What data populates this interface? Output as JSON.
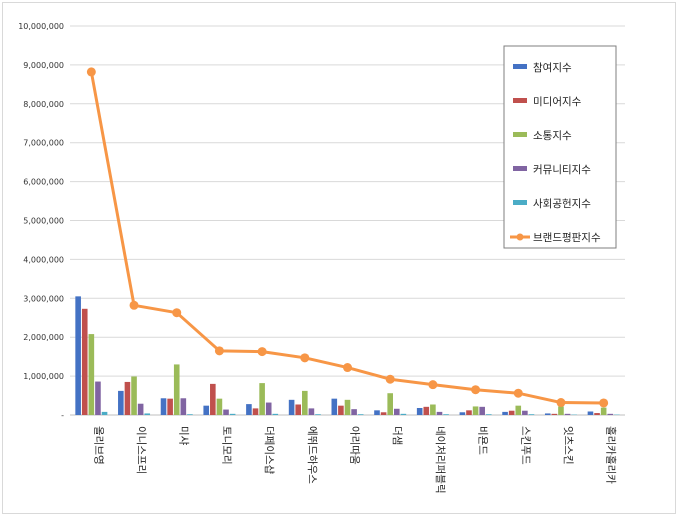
{
  "chart_data": {
    "type": "bar",
    "categories": [
      "올리브영",
      "이니스프리",
      "미샤",
      "토니모리",
      "더페이스샵",
      "에뛰드하우스",
      "아리따움",
      "더샘",
      "네이처리퍼블릭",
      "비욘드",
      "스킨푸드",
      "잇츠스킨",
      "홀리카홀리카"
    ],
    "ylim": [
      0,
      10000000
    ],
    "yticks": [
      0,
      1000000,
      2000000,
      3000000,
      4000000,
      5000000,
      6000000,
      7000000,
      8000000,
      9000000,
      10000000
    ],
    "ytick_labels": [
      "-",
      "1,000,000",
      "2,000,000",
      "3,000,000",
      "4,000,000",
      "5,000,000",
      "6,000,000",
      "7,000,000",
      "8,000,000",
      "9,000,000",
      "10,000,000"
    ],
    "grid": true,
    "legend_position": "top-right",
    "series": [
      {
        "name": "참여지수",
        "type": "bar",
        "color": "#4472C4",
        "values": [
          3050000,
          620000,
          430000,
          240000,
          280000,
          390000,
          420000,
          120000,
          180000,
          70000,
          80000,
          40000,
          90000
        ]
      },
      {
        "name": "미디어지수",
        "type": "bar",
        "color": "#C0504D",
        "values": [
          2730000,
          850000,
          420000,
          800000,
          170000,
          270000,
          240000,
          70000,
          210000,
          120000,
          110000,
          30000,
          50000
        ]
      },
      {
        "name": "소통지수",
        "type": "bar",
        "color": "#9BBB59",
        "values": [
          2080000,
          990000,
          1300000,
          420000,
          820000,
          620000,
          390000,
          560000,
          270000,
          220000,
          240000,
          220000,
          190000
        ]
      },
      {
        "name": "커뮤니티지수",
        "type": "bar",
        "color": "#8064A2",
        "values": [
          860000,
          290000,
          430000,
          140000,
          320000,
          170000,
          150000,
          160000,
          80000,
          210000,
          110000,
          30000,
          30000
        ]
      },
      {
        "name": "사회공헌지수",
        "type": "bar",
        "color": "#4BACC6",
        "values": [
          80000,
          40000,
          20000,
          30000,
          30000,
          20000,
          20000,
          30000,
          20000,
          20000,
          20000,
          10000,
          10000
        ]
      },
      {
        "name": "브랜드평판지수",
        "type": "line",
        "color": "#F79646",
        "values": [
          8820000,
          2820000,
          2630000,
          1650000,
          1630000,
          1470000,
          1220000,
          920000,
          780000,
          650000,
          560000,
          320000,
          310000
        ]
      }
    ]
  }
}
